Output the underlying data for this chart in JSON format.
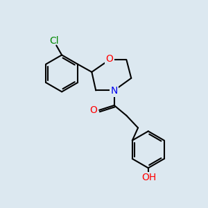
{
  "background_color": "#dce8f0",
  "line_color": "#000000",
  "bond_width": 1.5,
  "atom_colors": {
    "Cl": "#008800",
    "O": "#ff0000",
    "N": "#0000ee",
    "C": "#000000",
    "H": "#000000"
  },
  "font_size": 9,
  "figsize": [
    3.0,
    3.0
  ],
  "dpi": 100
}
